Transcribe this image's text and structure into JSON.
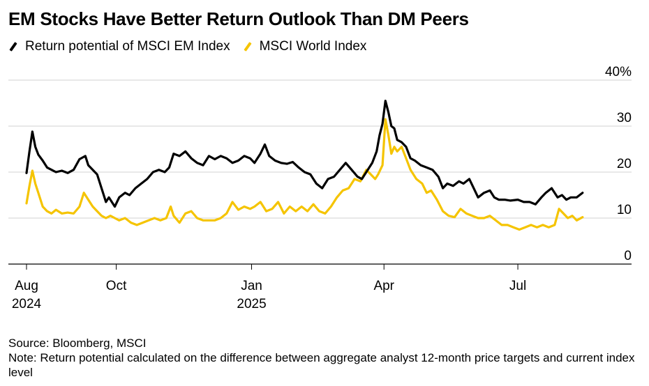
{
  "title": "EM Stocks Have Better Return Outlook Than DM Peers",
  "legend": [
    {
      "label": "Return potential of MSCI EM Index",
      "color": "#000000"
    },
    {
      "label": "MSCI World Index",
      "color": "#f5c400"
    }
  ],
  "source": "Source: Bloomberg, MSCI",
  "note": "Note: Return potential calculated on the difference between aggregate analyst 12-month price targets and current index level",
  "chart_data": {
    "type": "line",
    "title": "EM Stocks Have Better Return Outlook Than DM Peers",
    "xlabel": "",
    "ylabel": "",
    "ylim": [
      0,
      40
    ],
    "yticks": [
      0,
      10,
      20,
      30,
      40
    ],
    "ytick_labels": [
      "0",
      "10",
      "20",
      "30",
      "40%"
    ],
    "x_range": [
      "2024-08-01",
      "2025-08-25"
    ],
    "x_ticks": [
      {
        "date": "2024-08-01",
        "label": "Aug",
        "sub": "2024"
      },
      {
        "date": "2024-10-01",
        "label": "Oct",
        "sub": ""
      },
      {
        "date": "2025-01-01",
        "label": "Jan",
        "sub": "2025"
      },
      {
        "date": "2025-04-01",
        "label": "Apr",
        "sub": ""
      },
      {
        "date": "2025-07-01",
        "label": "Jul",
        "sub": ""
      }
    ],
    "series": [
      {
        "name": "Return potential of MSCI EM Index",
        "color": "#000000",
        "points": [
          [
            "2024-08-01",
            19.8
          ],
          [
            "2024-08-03",
            24.5
          ],
          [
            "2024-08-05",
            28.8
          ],
          [
            "2024-08-07",
            25.5
          ],
          [
            "2024-08-09",
            23.8
          ],
          [
            "2024-08-12",
            22.5
          ],
          [
            "2024-08-15",
            21.0
          ],
          [
            "2024-08-18",
            20.5
          ],
          [
            "2024-08-21",
            20.0
          ],
          [
            "2024-08-25",
            20.3
          ],
          [
            "2024-08-29",
            19.8
          ],
          [
            "2024-09-02",
            20.5
          ],
          [
            "2024-09-06",
            22.8
          ],
          [
            "2024-09-10",
            23.5
          ],
          [
            "2024-09-12",
            21.5
          ],
          [
            "2024-09-15",
            20.5
          ],
          [
            "2024-09-18",
            19.5
          ],
          [
            "2024-09-21",
            16.5
          ],
          [
            "2024-09-24",
            13.5
          ],
          [
            "2024-09-26",
            14.5
          ],
          [
            "2024-09-30",
            12.5
          ],
          [
            "2024-10-03",
            14.5
          ],
          [
            "2024-10-07",
            15.5
          ],
          [
            "2024-10-10",
            15.0
          ],
          [
            "2024-10-14",
            16.5
          ],
          [
            "2024-10-18",
            17.5
          ],
          [
            "2024-10-22",
            18.5
          ],
          [
            "2024-10-26",
            20.0
          ],
          [
            "2024-10-30",
            20.5
          ],
          [
            "2024-11-03",
            20.0
          ],
          [
            "2024-11-06",
            21.0
          ],
          [
            "2024-11-09",
            24.0
          ],
          [
            "2024-11-13",
            23.5
          ],
          [
            "2024-11-17",
            24.5
          ],
          [
            "2024-11-21",
            23.0
          ],
          [
            "2024-11-25",
            22.0
          ],
          [
            "2024-11-29",
            21.5
          ],
          [
            "2024-12-03",
            23.5
          ],
          [
            "2024-12-07",
            22.8
          ],
          [
            "2024-12-11",
            23.5
          ],
          [
            "2024-12-15",
            23.0
          ],
          [
            "2024-12-19",
            22.0
          ],
          [
            "2024-12-23",
            22.5
          ],
          [
            "2024-12-27",
            23.5
          ],
          [
            "2024-12-31",
            23.0
          ],
          [
            "2025-01-03",
            22.0
          ],
          [
            "2025-01-07",
            24.0
          ],
          [
            "2025-01-10",
            26.0
          ],
          [
            "2025-01-13",
            23.5
          ],
          [
            "2025-01-17",
            22.5
          ],
          [
            "2025-01-21",
            22.0
          ],
          [
            "2025-01-25",
            21.8
          ],
          [
            "2025-01-29",
            22.2
          ],
          [
            "2025-02-02",
            21.0
          ],
          [
            "2025-02-06",
            20.0
          ],
          [
            "2025-02-10",
            19.5
          ],
          [
            "2025-02-14",
            17.5
          ],
          [
            "2025-02-18",
            16.5
          ],
          [
            "2025-02-22",
            18.5
          ],
          [
            "2025-02-26",
            19.0
          ],
          [
            "2025-03-02",
            20.5
          ],
          [
            "2025-03-06",
            22.0
          ],
          [
            "2025-03-10",
            20.5
          ],
          [
            "2025-03-14",
            19.0
          ],
          [
            "2025-03-17",
            18.5
          ],
          [
            "2025-03-20",
            20.0
          ],
          [
            "2025-03-24",
            22.0
          ],
          [
            "2025-03-27",
            24.5
          ],
          [
            "2025-03-29",
            28.0
          ],
          [
            "2025-03-31",
            30.5
          ],
          [
            "2025-04-02",
            35.5
          ],
          [
            "2025-04-04",
            33.0
          ],
          [
            "2025-04-06",
            30.0
          ],
          [
            "2025-04-08",
            29.5
          ],
          [
            "2025-04-10",
            27.0
          ],
          [
            "2025-04-13",
            26.5
          ],
          [
            "2025-04-16",
            25.5
          ],
          [
            "2025-04-19",
            23.0
          ],
          [
            "2025-04-22",
            22.5
          ],
          [
            "2025-04-26",
            21.5
          ],
          [
            "2025-04-30",
            21.0
          ],
          [
            "2025-05-04",
            20.5
          ],
          [
            "2025-05-08",
            19.0
          ],
          [
            "2025-05-11",
            16.5
          ],
          [
            "2025-05-14",
            17.5
          ],
          [
            "2025-05-18",
            17.0
          ],
          [
            "2025-05-22",
            18.0
          ],
          [
            "2025-05-25",
            17.5
          ],
          [
            "2025-05-29",
            18.5
          ],
          [
            "2025-06-01",
            16.5
          ],
          [
            "2025-06-04",
            14.5
          ],
          [
            "2025-06-08",
            15.5
          ],
          [
            "2025-06-12",
            16.0
          ],
          [
            "2025-06-15",
            14.5
          ],
          [
            "2025-06-18",
            14.0
          ],
          [
            "2025-06-22",
            14.0
          ],
          [
            "2025-06-26",
            13.8
          ],
          [
            "2025-07-01",
            14.0
          ],
          [
            "2025-07-05",
            13.5
          ],
          [
            "2025-07-09",
            13.5
          ],
          [
            "2025-07-13",
            13.0
          ],
          [
            "2025-07-17",
            14.5
          ],
          [
            "2025-07-20",
            15.5
          ],
          [
            "2025-07-24",
            16.5
          ],
          [
            "2025-07-28",
            14.5
          ],
          [
            "2025-07-31",
            15.0
          ],
          [
            "2025-08-03",
            14.0
          ],
          [
            "2025-08-06",
            14.5
          ],
          [
            "2025-08-10",
            14.5
          ],
          [
            "2025-08-14",
            15.5
          ]
        ]
      },
      {
        "name": "MSCI World Index",
        "color": "#f5c400",
        "points": [
          [
            "2024-08-01",
            13.2
          ],
          [
            "2024-08-03",
            17.0
          ],
          [
            "2024-08-05",
            20.3
          ],
          [
            "2024-08-07",
            17.5
          ],
          [
            "2024-08-09",
            15.5
          ],
          [
            "2024-08-12",
            12.5
          ],
          [
            "2024-08-15",
            11.5
          ],
          [
            "2024-08-18",
            11.0
          ],
          [
            "2024-08-21",
            11.8
          ],
          [
            "2024-08-25",
            11.0
          ],
          [
            "2024-08-29",
            11.2
          ],
          [
            "2024-09-02",
            11.0
          ],
          [
            "2024-09-06",
            12.5
          ],
          [
            "2024-09-09",
            15.5
          ],
          [
            "2024-09-12",
            14.0
          ],
          [
            "2024-09-15",
            12.5
          ],
          [
            "2024-09-18",
            11.5
          ],
          [
            "2024-09-21",
            10.5
          ],
          [
            "2024-09-24",
            10.0
          ],
          [
            "2024-09-27",
            10.5
          ],
          [
            "2024-09-30",
            10.0
          ],
          [
            "2024-10-03",
            9.5
          ],
          [
            "2024-10-07",
            10.0
          ],
          [
            "2024-10-11",
            9.0
          ],
          [
            "2024-10-15",
            8.5
          ],
          [
            "2024-10-19",
            9.0
          ],
          [
            "2024-10-23",
            9.5
          ],
          [
            "2024-10-27",
            10.0
          ],
          [
            "2024-10-31",
            9.5
          ],
          [
            "2024-11-04",
            10.0
          ],
          [
            "2024-11-07",
            12.5
          ],
          [
            "2024-11-09",
            10.5
          ],
          [
            "2024-11-13",
            9.0
          ],
          [
            "2024-11-17",
            11.0
          ],
          [
            "2024-11-21",
            11.5
          ],
          [
            "2024-11-25",
            10.0
          ],
          [
            "2024-11-29",
            9.5
          ],
          [
            "2024-12-03",
            9.5
          ],
          [
            "2024-12-07",
            9.5
          ],
          [
            "2024-12-11",
            10.0
          ],
          [
            "2024-12-15",
            11.0
          ],
          [
            "2024-12-19",
            13.5
          ],
          [
            "2024-12-23",
            11.8
          ],
          [
            "2024-12-27",
            12.5
          ],
          [
            "2024-12-31",
            12.0
          ],
          [
            "2025-01-03",
            12.5
          ],
          [
            "2025-01-07",
            13.5
          ],
          [
            "2025-01-11",
            11.5
          ],
          [
            "2025-01-15",
            12.0
          ],
          [
            "2025-01-19",
            13.5
          ],
          [
            "2025-01-23",
            11.0
          ],
          [
            "2025-01-27",
            12.5
          ],
          [
            "2025-01-31",
            11.5
          ],
          [
            "2025-02-04",
            12.5
          ],
          [
            "2025-02-08",
            11.5
          ],
          [
            "2025-02-12",
            13.0
          ],
          [
            "2025-02-16",
            11.5
          ],
          [
            "2025-02-20",
            11.0
          ],
          [
            "2025-02-24",
            12.5
          ],
          [
            "2025-02-28",
            14.5
          ],
          [
            "2025-03-04",
            16.0
          ],
          [
            "2025-03-08",
            16.5
          ],
          [
            "2025-03-12",
            18.5
          ],
          [
            "2025-03-16",
            18.0
          ],
          [
            "2025-03-20",
            20.5
          ],
          [
            "2025-03-23",
            19.5
          ],
          [
            "2025-03-26",
            18.5
          ],
          [
            "2025-03-28",
            19.5
          ],
          [
            "2025-03-31",
            21.5
          ],
          [
            "2025-04-02",
            31.5
          ],
          [
            "2025-04-04",
            28.0
          ],
          [
            "2025-04-06",
            24.0
          ],
          [
            "2025-04-08",
            25.5
          ],
          [
            "2025-04-10",
            24.5
          ],
          [
            "2025-04-13",
            25.5
          ],
          [
            "2025-04-16",
            23.0
          ],
          [
            "2025-04-19",
            20.5
          ],
          [
            "2025-04-23",
            18.5
          ],
          [
            "2025-04-27",
            17.5
          ],
          [
            "2025-04-30",
            15.5
          ],
          [
            "2025-05-03",
            16.0
          ],
          [
            "2025-05-07",
            14.0
          ],
          [
            "2025-05-11",
            11.5
          ],
          [
            "2025-05-15",
            10.5
          ],
          [
            "2025-05-19",
            10.2
          ],
          [
            "2025-05-23",
            12.0
          ],
          [
            "2025-05-27",
            11.0
          ],
          [
            "2025-05-31",
            10.5
          ],
          [
            "2025-06-04",
            10.0
          ],
          [
            "2025-06-08",
            10.0
          ],
          [
            "2025-06-12",
            10.5
          ],
          [
            "2025-06-16",
            9.5
          ],
          [
            "2025-06-20",
            8.5
          ],
          [
            "2025-06-24",
            8.5
          ],
          [
            "2025-06-28",
            8.0
          ],
          [
            "2025-07-02",
            7.5
          ],
          [
            "2025-07-06",
            8.0
          ],
          [
            "2025-07-10",
            8.5
          ],
          [
            "2025-07-14",
            8.0
          ],
          [
            "2025-07-18",
            8.5
          ],
          [
            "2025-07-22",
            8.0
          ],
          [
            "2025-07-26",
            8.5
          ],
          [
            "2025-07-29",
            12.0
          ],
          [
            "2025-08-01",
            11.0
          ],
          [
            "2025-08-04",
            10.0
          ],
          [
            "2025-08-07",
            10.5
          ],
          [
            "2025-08-10",
            9.5
          ],
          [
            "2025-08-14",
            10.2
          ]
        ]
      }
    ]
  }
}
